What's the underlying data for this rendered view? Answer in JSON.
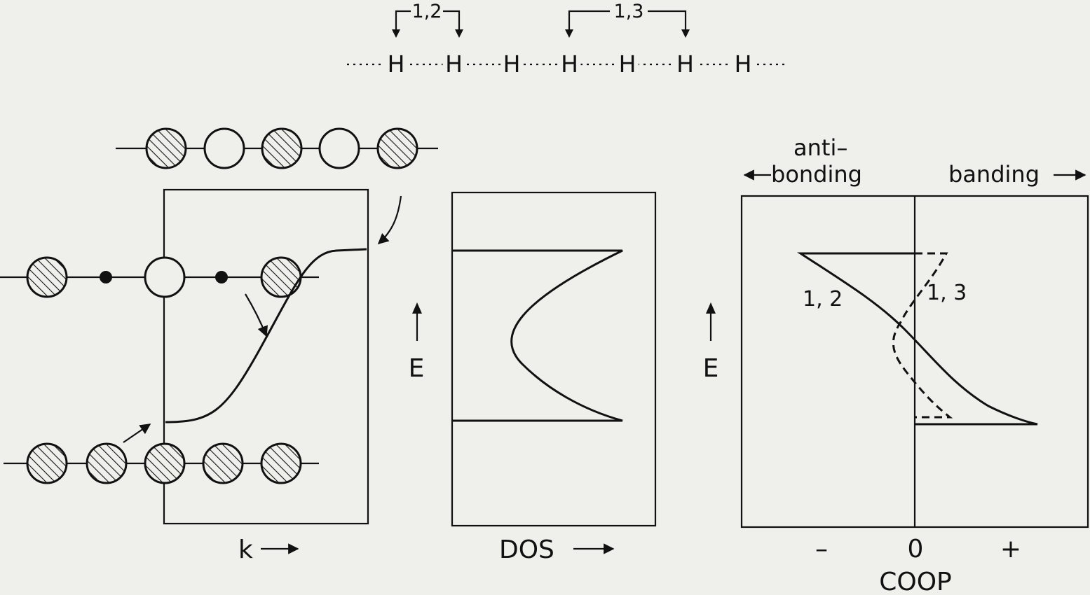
{
  "chain": {
    "atom_label": "H",
    "atom_count": 7,
    "bracket_12_label": "1,2",
    "bracket_13_label": "1,3"
  },
  "band_panel": {
    "x_label": "k",
    "top_orbitals": [
      "filled",
      "empty",
      "filled",
      "empty",
      "filled"
    ],
    "middle_orbitals": [
      "filled",
      "dot",
      "empty",
      "dot",
      "filled"
    ],
    "bottom_orbitals": [
      "filled",
      "filled",
      "filled",
      "filled",
      "filled"
    ]
  },
  "dos_panel": {
    "x_label": "DOS",
    "y_label": "E"
  },
  "coop_panel": {
    "y_label": "E",
    "x_label": "COOP",
    "tick_minus": "–",
    "tick_zero": "0",
    "tick_plus": "+",
    "antibonding_line1": "anti–",
    "antibonding_line2": "bonding",
    "bonding_label": "banding",
    "curve_12_label": "1, 2",
    "curve_13_label": "1, 3"
  }
}
